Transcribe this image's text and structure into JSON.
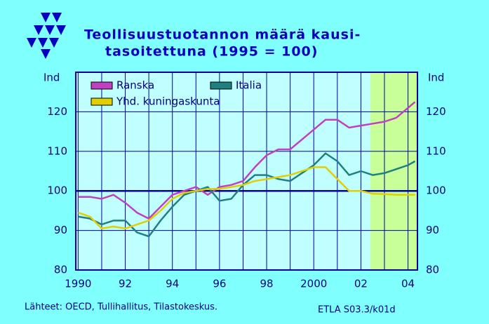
{
  "chart_data": {
    "type": "line",
    "title_lines": [
      "Teollisuustuotannon  määrä  kausi-",
      "tasoitettuna  (1995 = 100)"
    ],
    "y_axis_label": "Ind",
    "y2_axis_label": "Ind",
    "source": "Lähteet:   OECD, Tullihallitus, Tilastokeskus.",
    "code": "ETLA S03.3/k01d",
    "x": [
      1990,
      1990.5,
      1991,
      1991.5,
      1992,
      1992.5,
      1993,
      1993.5,
      1994,
      1994.5,
      1995,
      1995.5,
      1996,
      1996.5,
      1997,
      1997.5,
      1998,
      1998.5,
      1999,
      1999.5,
      2000,
      2000.5,
      2001,
      2001.5,
      2002,
      2002.5,
      2003,
      2003.5,
      2004,
      2004.3
    ],
    "series": [
      {
        "name": "Ranska",
        "color": "#c040c0",
        "values": [
          98.5,
          98.5,
          98,
          99,
          97,
          94.5,
          93,
          96,
          99,
          100,
          101,
          99,
          101,
          101.5,
          102.5,
          106,
          109,
          110.5,
          110.5,
          113,
          115.5,
          118,
          118,
          116,
          116.5,
          117,
          117.5,
          118.5,
          121,
          122.5
        ]
      },
      {
        "name": "Italia",
        "color": "#208080",
        "values": [
          93.5,
          93,
          91.5,
          92.5,
          92.5,
          89.5,
          88.5,
          92.5,
          96,
          99,
          100,
          101,
          97.5,
          98,
          101.5,
          104,
          104,
          103,
          102.5,
          104.5,
          106.5,
          109.5,
          107.5,
          104,
          105,
          104,
          104.5,
          105.5,
          106.5,
          107.5
        ]
      },
      {
        "name": "Yhd. kuningaskunta",
        "color": "#e0d000",
        "values": [
          94.5,
          93.5,
          90.5,
          91,
          90.5,
          91.5,
          92.5,
          95,
          98,
          99.5,
          100,
          100.5,
          100.5,
          101,
          101.5,
          102.5,
          103,
          103.5,
          104,
          105,
          106,
          106,
          103,
          100,
          100,
          99.3,
          99.2,
          99,
          99,
          99
        ]
      }
    ],
    "xlim": [
      1989.9,
      2004.4
    ],
    "xticks": [
      1990,
      {
        "value": 1992,
        "label": "92"
      },
      {
        "value": 1994,
        "label": "94"
      },
      {
        "value": 1996,
        "label": "96"
      },
      {
        "value": 1998,
        "label": "98"
      },
      2000,
      {
        "value": 2002,
        "label": "02"
      },
      {
        "value": 2004,
        "label": "04"
      }
    ],
    "x_minor_ticks": [
      1991,
      1993,
      1995,
      1997,
      1999,
      2001,
      2003
    ],
    "ylim": [
      80,
      130
    ],
    "yticks": [
      80,
      90,
      100,
      110,
      120
    ],
    "y2lim": [
      80,
      130
    ],
    "y2ticks": [
      80,
      90,
      100,
      110,
      120
    ],
    "reference_line": 100,
    "forecast_start": 2002.4,
    "grid": true
  }
}
